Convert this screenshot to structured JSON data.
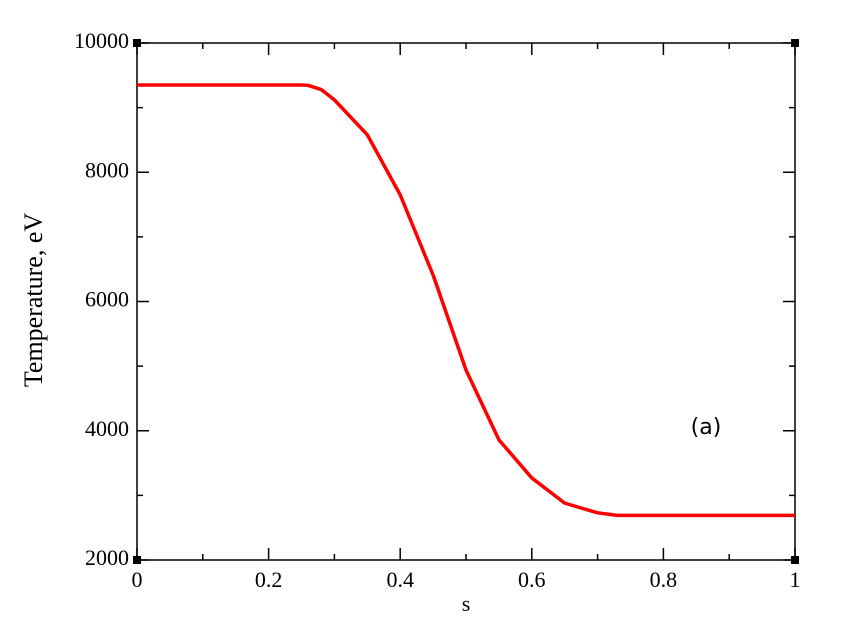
{
  "chart_data": {
    "type": "line",
    "x_label": "s",
    "y_label": "Temperature, eV",
    "annotation": "(a)",
    "x": [
      0,
      0.1,
      0.2,
      0.25,
      0.26,
      0.28,
      0.3,
      0.35,
      0.4,
      0.45,
      0.5,
      0.55,
      0.6,
      0.65,
      0.7,
      0.73,
      0.8,
      0.9,
      1
    ],
    "values": [
      9350,
      9350,
      9350,
      9350,
      9345,
      9280,
      9120,
      8580,
      7650,
      6410,
      4940,
      3860,
      3270,
      2880,
      2730,
      2690,
      2690,
      2690,
      2690
    ],
    "color": "#ff0000",
    "xlim": [
      0,
      1
    ],
    "xticks": [
      0,
      0.2,
      0.4,
      0.6,
      0.8,
      1
    ],
    "xminor": [
      0.1,
      0.3,
      0.5,
      0.7,
      0.9
    ],
    "ylim": [
      2000,
      10000
    ],
    "yticks": [
      2000,
      4000,
      6000,
      8000,
      10000
    ],
    "yminor": [
      3000,
      5000,
      7000,
      9000
    ]
  }
}
